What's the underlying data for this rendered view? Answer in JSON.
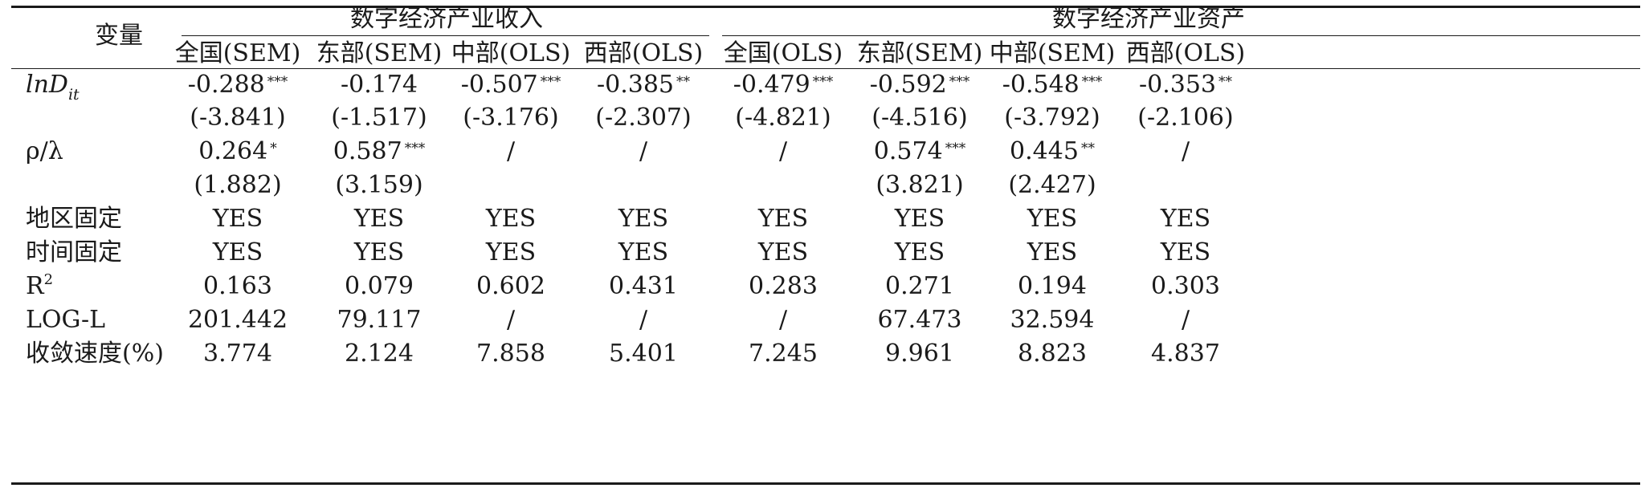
{
  "header": {
    "variable_label": "变量",
    "group_revenue": "数字经济产业收入",
    "group_assets": "数字经济产业资产",
    "columns": [
      "全国(SEM)",
      "东部(SEM)",
      "中部(OLS)",
      "西部(OLS)",
      "全国(OLS)",
      "东部(SEM)",
      "中部(SEM)",
      "西部(OLS)"
    ]
  },
  "rows": {
    "lnD": {
      "label_base": "lnD",
      "label_sub": "it",
      "values": [
        "-0.288",
        "-0.174",
        "-0.507",
        "-0.385",
        "-0.479",
        "-0.592",
        "-0.548",
        "-0.353"
      ],
      "stars": [
        "***",
        "",
        "***",
        "**",
        "***",
        "***",
        "***",
        "**"
      ]
    },
    "lnD_t": {
      "values": [
        "(-3.841)",
        "(-1.517)",
        "(-3.176)",
        "(-2.307)",
        "(-4.821)",
        "(-4.516)",
        "(-3.792)",
        "(-2.106)"
      ]
    },
    "rho": {
      "label": "ρ/λ",
      "values": [
        "0.264",
        "0.587",
        "/",
        "/",
        "/",
        "0.574",
        "0.445",
        "/"
      ],
      "stars": [
        "*",
        "***",
        "",
        "",
        "",
        "***",
        "**",
        ""
      ]
    },
    "rho_t": {
      "values": [
        "(1.882)",
        "(3.159)",
        "",
        "",
        "",
        "(3.821)",
        "(2.427)",
        ""
      ]
    },
    "region_fe": {
      "label": "地区固定",
      "values": [
        "YES",
        "YES",
        "YES",
        "YES",
        "YES",
        "YES",
        "YES",
        "YES"
      ]
    },
    "time_fe": {
      "label": "时间固定",
      "values": [
        "YES",
        "YES",
        "YES",
        "YES",
        "YES",
        "YES",
        "YES",
        "YES"
      ]
    },
    "r2": {
      "label_base": "R",
      "label_sup": "2",
      "values": [
        "0.163",
        "0.079",
        "0.602",
        "0.431",
        "0.283",
        "0.271",
        "0.194",
        "0.303"
      ]
    },
    "logl": {
      "label": "LOG-L",
      "values": [
        "201.442",
        "79.117",
        "/",
        "/",
        "/",
        "67.473",
        "32.594",
        "/"
      ]
    },
    "speed": {
      "label": "收敛速度(%)",
      "values": [
        "3.774",
        "2.124",
        "7.858",
        "5.401",
        "7.245",
        "9.961",
        "8.823",
        "4.837"
      ]
    }
  }
}
